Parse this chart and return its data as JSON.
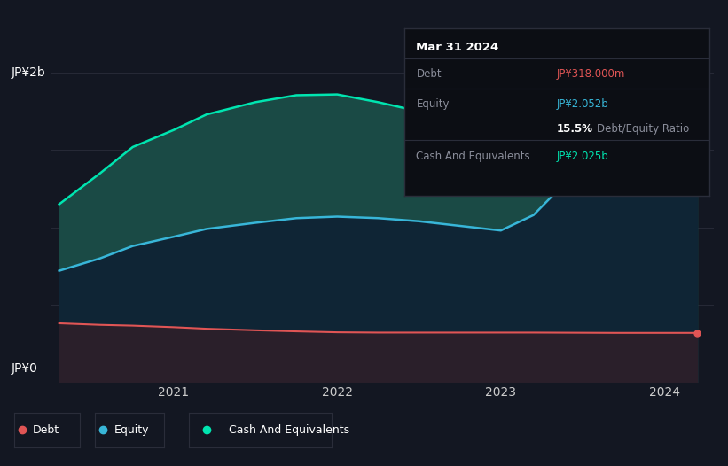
{
  "background_color": "#131722",
  "plot_bg_color": "#131722",
  "ylabel_top": "JP¥2b",
  "ylabel_bottom": "JP¥0",
  "x_ticks": [
    2021,
    2022,
    2023,
    2024
  ],
  "years": [
    2020.3,
    2020.55,
    2020.75,
    2021.0,
    2021.2,
    2021.5,
    2021.75,
    2022.0,
    2022.25,
    2022.5,
    2022.75,
    2023.0,
    2023.2,
    2023.45,
    2023.7,
    2023.9,
    2024.0,
    2024.2
  ],
  "debt": [
    0.38,
    0.37,
    0.365,
    0.355,
    0.345,
    0.335,
    0.328,
    0.322,
    0.32,
    0.32,
    0.32,
    0.32,
    0.32,
    0.319,
    0.318,
    0.318,
    0.318,
    0.318
  ],
  "equity": [
    0.72,
    0.8,
    0.88,
    0.94,
    0.99,
    1.03,
    1.06,
    1.07,
    1.06,
    1.04,
    1.01,
    0.98,
    1.08,
    1.35,
    1.65,
    1.92,
    2.0,
    2.052
  ],
  "cash": [
    1.15,
    1.35,
    1.52,
    1.63,
    1.73,
    1.81,
    1.855,
    1.86,
    1.81,
    1.75,
    1.67,
    1.58,
    1.72,
    1.9,
    2.08,
    2.18,
    2.15,
    2.025
  ],
  "debt_color": "#e05555",
  "equity_color": "#38b6d8",
  "cash_color": "#00e5b0",
  "cash_fill_alpha": 0.75,
  "equity_fill_alpha": 0.85,
  "debt_fill_alpha": 0.7,
  "tooltip": {
    "date": "Mar 31 2024",
    "debt_label": "Debt",
    "debt_value": "JP¥318.000m",
    "debt_value_color": "#e05555",
    "equity_label": "Equity",
    "equity_value": "JP¥2.052b",
    "equity_value_color": "#38b6d8",
    "ratio_value": "15.5%",
    "ratio_label": "Debt/Equity Ratio",
    "cash_label": "Cash And Equivalents",
    "cash_value": "JP¥2.025b",
    "cash_value_color": "#00e5b0"
  },
  "legend_items": [
    {
      "label": "Debt",
      "color": "#e05555"
    },
    {
      "label": "Equity",
      "color": "#38b6d8"
    },
    {
      "label": "Cash And Equivalents",
      "color": "#00e5b0"
    }
  ],
  "grid_color": "#2a2d3a",
  "ylim": [
    0,
    2.35
  ],
  "xlim": [
    2020.25,
    2024.3
  ]
}
